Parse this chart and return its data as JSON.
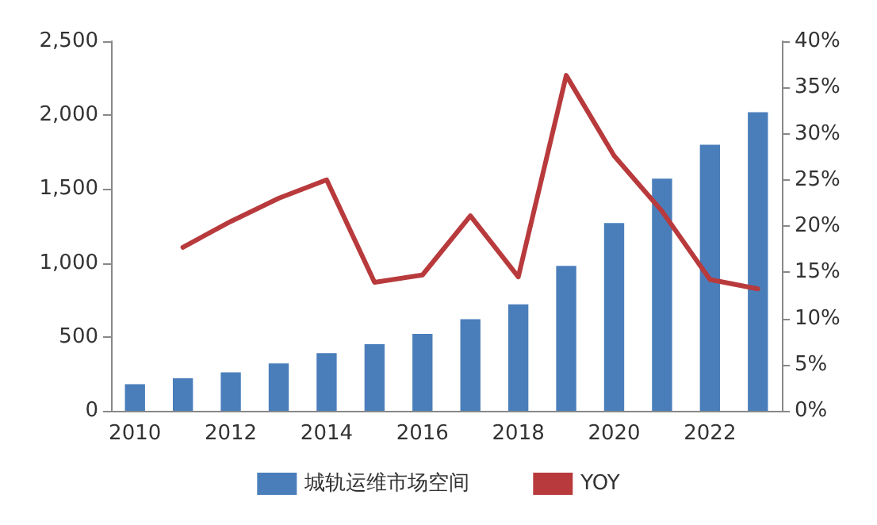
{
  "chart_data": {
    "type": "bar",
    "categories": [
      "2010",
      null,
      "2012",
      null,
      "2014",
      null,
      "2016",
      null,
      "2018",
      null,
      "2020",
      null,
      "2022",
      null
    ],
    "series": [
      {
        "name": "城轨运维市场空间",
        "color": "#4a7ebb",
        "values": [
          180,
          220,
          260,
          320,
          390,
          450,
          520,
          620,
          720,
          980,
          1270,
          1570,
          1800,
          2020
        ]
      },
      {
        "name": "YOY",
        "type": "line",
        "axis": "y2",
        "color": "#b83a3c",
        "values": [
          null,
          17.7,
          20.5,
          23,
          25,
          13.9,
          14.7,
          21.1,
          14.5,
          36.3,
          27.6,
          21.6,
          14.2,
          13.2
        ]
      }
    ],
    "ylim": [
      0,
      2500
    ],
    "yticks": [
      0,
      {
        "value": 500,
        "label": "500"
      },
      {
        "value": 1000,
        "label": "1,000"
      },
      {
        "value": 1500,
        "label": "1,500"
      },
      {
        "value": 2000,
        "label": "2,000"
      },
      {
        "value": 2500,
        "label": "2,500"
      }
    ],
    "y2lim": [
      0,
      40
    ],
    "y2ticks": [
      {
        "value": 0,
        "label": "0%"
      },
      {
        "value": 5,
        "label": "5%"
      },
      {
        "value": 10,
        "label": "10%"
      },
      {
        "value": 15,
        "label": "15%"
      },
      {
        "value": 20,
        "label": "20%"
      },
      {
        "value": 25,
        "label": "25%"
      },
      {
        "value": 30,
        "label": "30%"
      },
      {
        "value": 35,
        "label": "35%"
      },
      {
        "value": 40,
        "label": "40%"
      }
    ],
    "grid": false,
    "legend": "bottom",
    "marker": "none",
    "line_style": "solid"
  }
}
